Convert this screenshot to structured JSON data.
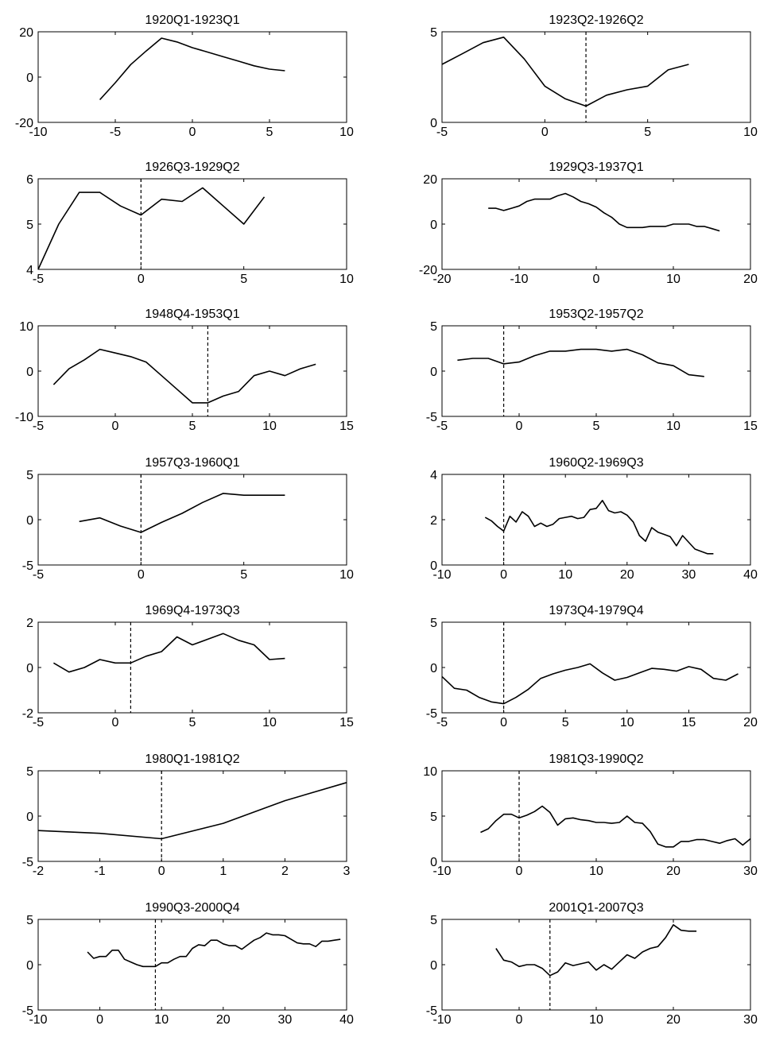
{
  "chart_data": [
    {
      "type": "line",
      "title": "1920Q1-1923Q1",
      "xlim": [
        -10,
        10
      ],
      "ylim": [
        -20,
        20
      ],
      "xticks": [
        -10,
        -5,
        0,
        5,
        10
      ],
      "xtick_labels": [
        "-10",
        "-5",
        "0",
        "5",
        "10"
      ],
      "yticks": [
        -20,
        0,
        20
      ],
      "ytick_labels": [
        "-20",
        "0",
        "20"
      ],
      "x": [
        -6,
        -5,
        -4,
        -3,
        -2,
        -1,
        0,
        1,
        2,
        3,
        4,
        5,
        6
      ],
      "y": [
        -10,
        -2.5,
        5.5,
        11.5,
        17.2,
        15.5,
        13,
        11,
        9,
        7,
        5,
        3.5,
        2.8
      ],
      "vline": null
    },
    {
      "type": "line",
      "title": "1923Q2-1926Q2",
      "xlim": [
        -5,
        10
      ],
      "ylim": [
        0,
        5
      ],
      "xticks": [
        -5,
        0,
        5,
        10
      ],
      "xtick_labels": [
        "-5",
        "0",
        "5",
        "10"
      ],
      "yticks": [
        0,
        5
      ],
      "ytick_labels": [
        "0",
        "5"
      ],
      "x": [
        -5,
        -4,
        -3,
        -2,
        -1,
        0,
        1,
        2,
        3,
        4,
        5,
        6,
        7
      ],
      "y": [
        3.2,
        3.8,
        4.4,
        4.7,
        3.5,
        2.0,
        1.3,
        0.9,
        1.5,
        1.8,
        2.0,
        2.9,
        3.2
      ],
      "vline": 2
    },
    {
      "type": "line",
      "title": "1926Q3-1929Q2",
      "xlim": [
        -5,
        10
      ],
      "ylim": [
        4,
        6
      ],
      "xticks": [
        -5,
        0,
        5,
        10
      ],
      "xtick_labels": [
        "-5",
        "0",
        "5",
        "10"
      ],
      "yticks": [
        4,
        5,
        6
      ],
      "ytick_labels": [
        "4",
        "5",
        "6"
      ],
      "x": [
        -5,
        -4,
        -3,
        -2,
        -1,
        0,
        1,
        2,
        3,
        4,
        5,
        6
      ],
      "y": [
        4.0,
        5.0,
        5.7,
        5.7,
        5.4,
        5.2,
        5.55,
        5.5,
        5.8,
        5.4,
        5.0,
        5.6
      ],
      "vline": 0
    },
    {
      "type": "line",
      "title": "1929Q3-1937Q1",
      "xlim": [
        -20,
        20
      ],
      "ylim": [
        -20,
        20
      ],
      "xticks": [
        -20,
        -10,
        0,
        10,
        20
      ],
      "xtick_labels": [
        "-20",
        "-10",
        "0",
        "10",
        "20"
      ],
      "yticks": [
        -20,
        0,
        20
      ],
      "ytick_labels": [
        "-20",
        "0",
        "20"
      ],
      "x": [
        -14,
        -13,
        -12,
        -11,
        -10,
        -9,
        -8,
        -7,
        -6,
        -5,
        -4,
        -3,
        -2,
        -1,
        0,
        1,
        2,
        3,
        4,
        5,
        6,
        7,
        8,
        9,
        10,
        11,
        12,
        13,
        14,
        15,
        16
      ],
      "y": [
        7,
        7,
        6,
        7,
        8,
        10,
        11,
        11,
        11,
        12.5,
        13.5,
        12,
        10,
        9,
        7.5,
        5,
        3,
        0,
        -1.5,
        -1.5,
        -1.5,
        -1,
        -1,
        -1,
        0,
        0,
        0,
        -1,
        -1,
        -2,
        -3
      ],
      "vline": null
    },
    {
      "type": "line",
      "title": "1948Q4-1953Q1",
      "xlim": [
        -5,
        15
      ],
      "ylim": [
        -10,
        10
      ],
      "xticks": [
        -5,
        0,
        5,
        10,
        15
      ],
      "xtick_labels": [
        "-5",
        "0",
        "5",
        "10",
        "15"
      ],
      "yticks": [
        -10,
        0,
        10
      ],
      "ytick_labels": [
        "-10",
        "0",
        "10"
      ],
      "x": [
        -4,
        -3,
        -2,
        -1,
        0,
        1,
        2,
        3,
        4,
        5,
        6,
        7,
        8,
        9,
        10,
        11,
        12,
        13
      ],
      "y": [
        -3,
        0.5,
        2.5,
        4.8,
        4,
        3.2,
        2,
        -1,
        -4,
        -7,
        -7,
        -5.5,
        -4.5,
        -1,
        0,
        -1,
        0.5,
        1.5
      ],
      "vline": 6
    },
    {
      "type": "line",
      "title": "1953Q2-1957Q2",
      "xlim": [
        -5,
        15
      ],
      "ylim": [
        -5,
        5
      ],
      "xticks": [
        -5,
        0,
        5,
        10,
        15
      ],
      "xtick_labels": [
        "-5",
        "0",
        "5",
        "10",
        "15"
      ],
      "yticks": [
        -5,
        0,
        5
      ],
      "ytick_labels": [
        "-5",
        "0",
        "5"
      ],
      "x": [
        -4,
        -3,
        -2,
        -1,
        0,
        1,
        2,
        3,
        4,
        5,
        6,
        7,
        8,
        9,
        10,
        11,
        12
      ],
      "y": [
        1.2,
        1.4,
        1.4,
        0.8,
        1,
        1.7,
        2.2,
        2.2,
        2.4,
        2.4,
        2.2,
        2.4,
        1.8,
        0.9,
        0.6,
        -0.4,
        -0.6
      ],
      "vline": -1
    },
    {
      "type": "line",
      "title": "1957Q3-1960Q1",
      "xlim": [
        -5,
        10
      ],
      "ylim": [
        -5,
        5
      ],
      "xticks": [
        -5,
        0,
        5,
        10
      ],
      "xtick_labels": [
        "-5",
        "0",
        "5",
        "10"
      ],
      "yticks": [
        -5,
        0,
        5
      ],
      "ytick_labels": [
        "-5",
        "0",
        "5"
      ],
      "x": [
        -3,
        -2,
        -1,
        0,
        1,
        2,
        3,
        4,
        5,
        6,
        7
      ],
      "y": [
        -0.2,
        0.2,
        -0.7,
        -1.4,
        -0.3,
        0.7,
        1.9,
        2.9,
        2.7,
        2.7,
        2.7
      ],
      "vline": 0
    },
    {
      "type": "line",
      "title": "1960Q2-1969Q3",
      "xlim": [
        -10,
        40
      ],
      "ylim": [
        0,
        4
      ],
      "xticks": [
        -10,
        0,
        10,
        20,
        30,
        40
      ],
      "xtick_labels": [
        "-10",
        "0",
        "10",
        "20",
        "30",
        "40"
      ],
      "yticks": [
        0,
        2,
        4
      ],
      "ytick_labels": [
        "0",
        "2",
        "4"
      ],
      "x": [
        -3,
        -2,
        -1,
        0,
        1,
        2,
        3,
        4,
        5,
        6,
        7,
        8,
        9,
        10,
        11,
        12,
        13,
        14,
        15,
        16,
        17,
        18,
        19,
        20,
        21,
        22,
        23,
        24,
        25,
        26,
        27,
        28,
        29,
        30,
        31,
        32,
        33,
        34
      ],
      "y": [
        2.1,
        1.95,
        1.7,
        1.5,
        2.15,
        1.9,
        2.35,
        2.15,
        1.7,
        1.85,
        1.7,
        1.8,
        2.05,
        2.1,
        2.15,
        2.05,
        2.1,
        2.45,
        2.5,
        2.85,
        2.4,
        2.3,
        2.35,
        2.2,
        1.9,
        1.3,
        1.05,
        1.65,
        1.45,
        1.35,
        1.25,
        0.85,
        1.3,
        1.0,
        0.7,
        0.6,
        0.5,
        0.5
      ],
      "vline": 0
    },
    {
      "type": "line",
      "title": "1969Q4-1973Q3",
      "xlim": [
        -5,
        15
      ],
      "ylim": [
        -2,
        2
      ],
      "xticks": [
        -5,
        0,
        5,
        10,
        15
      ],
      "xtick_labels": [
        "-5",
        "0",
        "5",
        "10",
        "15"
      ],
      "yticks": [
        -2,
        0,
        2
      ],
      "ytick_labels": [
        "-2",
        "0",
        "2"
      ],
      "x": [
        -4,
        -3,
        -2,
        -1,
        0,
        1,
        2,
        3,
        4,
        5,
        6,
        7,
        8,
        9,
        10,
        11
      ],
      "y": [
        0.2,
        -0.2,
        0,
        0.35,
        0.2,
        0.2,
        0.5,
        0.7,
        1.35,
        1.0,
        1.25,
        1.5,
        1.2,
        1.0,
        0.35,
        0.4
      ],
      "vline": 1
    },
    {
      "type": "line",
      "title": "1973Q4-1979Q4",
      "xlim": [
        -5,
        20
      ],
      "ylim": [
        -5,
        5
      ],
      "xticks": [
        -5,
        0,
        5,
        10,
        15,
        20
      ],
      "xtick_labels": [
        "-5",
        "0",
        "5",
        "10",
        "15",
        "20"
      ],
      "yticks": [
        -5,
        0,
        5
      ],
      "ytick_labels": [
        "-5",
        "0",
        "5"
      ],
      "x": [
        -5,
        -4,
        -3,
        -2,
        -1,
        0,
        1,
        2,
        3,
        4,
        5,
        6,
        7,
        8,
        9,
        10,
        11,
        12,
        13,
        14,
        15,
        16,
        17,
        18,
        19
      ],
      "y": [
        -1,
        -2.3,
        -2.5,
        -3.3,
        -3.8,
        -4,
        -3.3,
        -2.4,
        -1.2,
        -0.7,
        -0.3,
        0,
        0.4,
        -0.6,
        -1.4,
        -1.1,
        -0.6,
        -0.1,
        -0.2,
        -0.4,
        0.1,
        -0.2,
        -1.2,
        -1.4,
        -0.7
      ],
      "vline": 0
    },
    {
      "type": "line",
      "title": "1980Q1-1981Q2",
      "xlim": [
        -2,
        3
      ],
      "ylim": [
        -5,
        5
      ],
      "xticks": [
        -2,
        -1,
        0,
        1,
        2,
        3
      ],
      "xtick_labels": [
        "-2",
        "-1",
        "0",
        "1",
        "2",
        "3"
      ],
      "yticks": [
        -5,
        0,
        5
      ],
      "ytick_labels": [
        "-5",
        "0",
        "5"
      ],
      "x": [
        -2,
        -1,
        0,
        1,
        2,
        3
      ],
      "y": [
        -1.6,
        -1.9,
        -2.5,
        -0.8,
        1.7,
        3.7
      ],
      "vline": 0
    },
    {
      "type": "line",
      "title": "1981Q3-1990Q2",
      "xlim": [
        -10,
        30
      ],
      "ylim": [
        0,
        10
      ],
      "xticks": [
        -10,
        0,
        10,
        20,
        30
      ],
      "xtick_labels": [
        "-10",
        "0",
        "10",
        "20",
        "30"
      ],
      "yticks": [
        0,
        5,
        10
      ],
      "ytick_labels": [
        "0",
        "5",
        "10"
      ],
      "x": [
        -5,
        -4,
        -3,
        -2,
        -1,
        0,
        1,
        2,
        3,
        4,
        5,
        6,
        7,
        8,
        9,
        10,
        11,
        12,
        13,
        14,
        15,
        16,
        17,
        18,
        19,
        20,
        21,
        22,
        23,
        24,
        25,
        26,
        27,
        28,
        29,
        30
      ],
      "y": [
        3.2,
        3.6,
        4.5,
        5.2,
        5.2,
        4.8,
        5.1,
        5.5,
        6.1,
        5.4,
        4.0,
        4.7,
        4.8,
        4.6,
        4.5,
        4.3,
        4.3,
        4.2,
        4.3,
        5.0,
        4.3,
        4.2,
        3.3,
        1.9,
        1.6,
        1.6,
        2.2,
        2.2,
        2.4,
        2.4,
        2.2,
        2.0,
        2.3,
        2.5,
        1.8,
        2.5
      ],
      "vline": 0
    },
    {
      "type": "line",
      "title": "1990Q3-2000Q4",
      "xlim": [
        -10,
        40
      ],
      "ylim": [
        -5,
        5
      ],
      "xticks": [
        -10,
        0,
        10,
        20,
        30,
        40
      ],
      "xtick_labels": [
        "-10",
        "0",
        "10",
        "20",
        "30",
        "40"
      ],
      "yticks": [
        -5,
        0,
        5
      ],
      "ytick_labels": [
        "-5",
        "0",
        "5"
      ],
      "x": [
        -2,
        -1,
        0,
        1,
        2,
        3,
        4,
        5,
        6,
        7,
        8,
        9,
        10,
        11,
        12,
        13,
        14,
        15,
        16,
        17,
        18,
        19,
        20,
        21,
        22,
        23,
        24,
        25,
        26,
        27,
        28,
        29,
        30,
        31,
        32,
        33,
        34,
        35,
        36,
        37,
        38,
        39
      ],
      "y": [
        1.4,
        0.7,
        0.9,
        0.9,
        1.6,
        1.6,
        0.6,
        0.3,
        0.0,
        -0.2,
        -0.2,
        -0.2,
        0.2,
        0.2,
        0.6,
        0.9,
        0.9,
        1.8,
        2.2,
        2.1,
        2.7,
        2.7,
        2.3,
        2.1,
        2.1,
        1.7,
        2.2,
        2.7,
        3.0,
        3.5,
        3.3,
        3.3,
        3.2,
        2.8,
        2.4,
        2.3,
        2.3,
        2.0,
        2.6,
        2.6,
        2.7,
        2.8
      ],
      "vline": 9
    },
    {
      "type": "line",
      "title": "2001Q1-2007Q3",
      "xlim": [
        -10,
        30
      ],
      "ylim": [
        -5,
        5
      ],
      "xticks": [
        -10,
        0,
        10,
        20,
        30
      ],
      "xtick_labels": [
        "-10",
        "0",
        "10",
        "20",
        "30"
      ],
      "yticks": [
        -5,
        0,
        5
      ],
      "ytick_labels": [
        "-5",
        "0",
        "5"
      ],
      "x": [
        -3,
        -2,
        -1,
        0,
        1,
        2,
        3,
        4,
        5,
        6,
        7,
        8,
        9,
        10,
        11,
        12,
        13,
        14,
        15,
        16,
        17,
        18,
        19,
        20,
        21,
        22,
        23
      ],
      "y": [
        1.8,
        0.5,
        0.3,
        -0.2,
        0.0,
        0.0,
        -0.4,
        -1.2,
        -0.8,
        0.2,
        -0.1,
        0.1,
        0.3,
        -0.6,
        0.0,
        -0.5,
        0.3,
        1.1,
        0.7,
        1.4,
        1.8,
        2.0,
        3.0,
        4.4,
        3.8,
        3.7,
        3.7
      ],
      "vline": 4
    }
  ]
}
